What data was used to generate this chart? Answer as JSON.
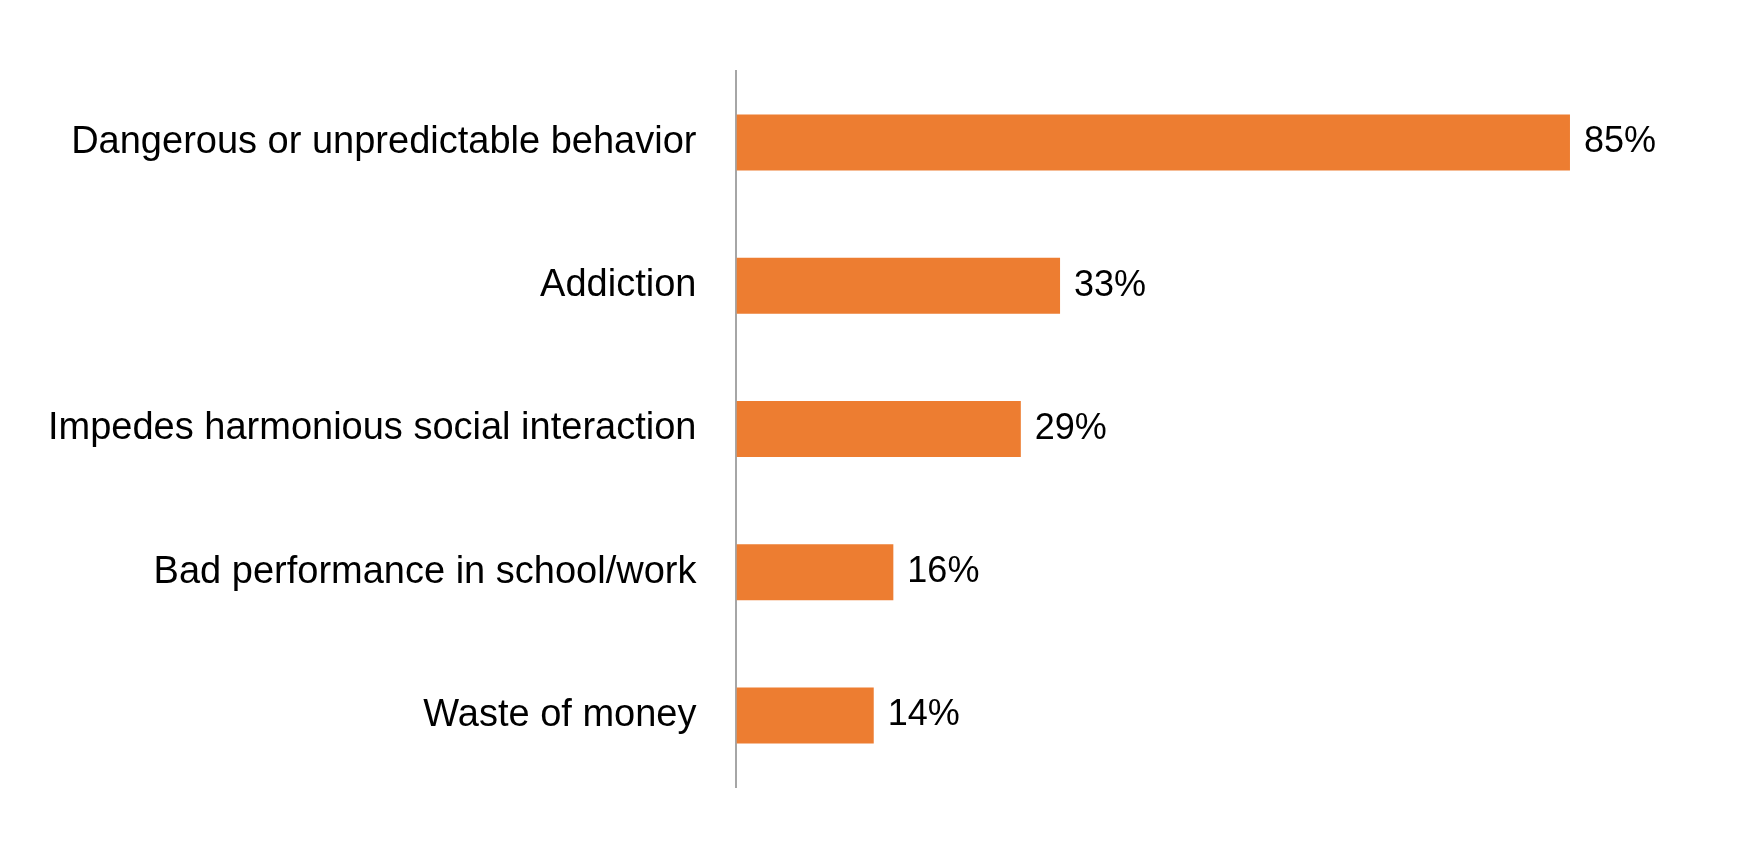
{
  "chart_data": {
    "type": "bar",
    "orientation": "horizontal",
    "categories": [
      "Dangerous or unpredictable behavior",
      "Addiction",
      "Impedes harmonious social interaction",
      "Bad performance in school/work",
      "Waste of money"
    ],
    "values": [
      85,
      33,
      29,
      16,
      14
    ],
    "value_labels": [
      "85%",
      "33%",
      "29%",
      "16%",
      "14%"
    ],
    "color": "#ed7d31",
    "grid": false,
    "legend": false
  }
}
